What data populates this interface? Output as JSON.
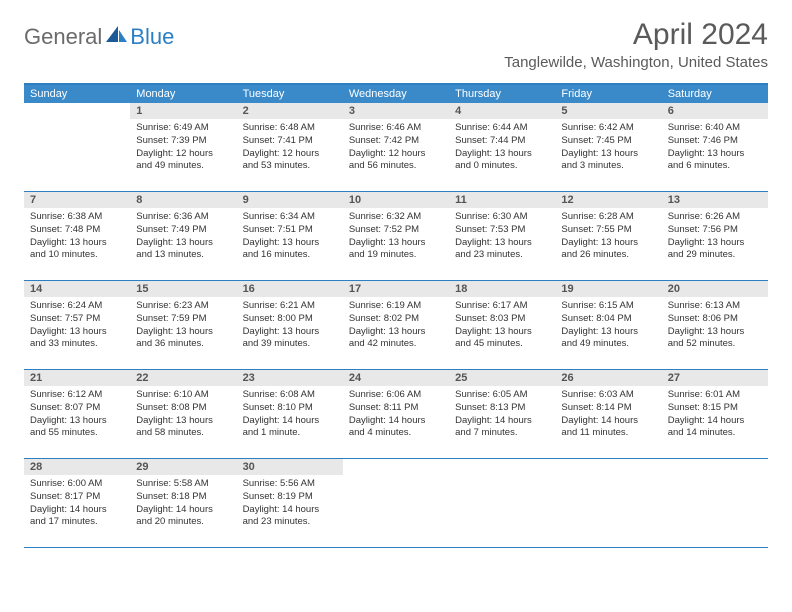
{
  "logo": {
    "text1": "General",
    "text2": "Blue"
  },
  "title": "April 2024",
  "location": "Tanglewilde, Washington, United States",
  "colors": {
    "header_bar": "#3a8ac9",
    "accent": "#2d7fc4",
    "daynum_bg": "#e8e8e8",
    "text_gray": "#5a5a5a"
  },
  "dayNames": [
    "Sunday",
    "Monday",
    "Tuesday",
    "Wednesday",
    "Thursday",
    "Friday",
    "Saturday"
  ],
  "weeks": [
    [
      {
        "empty": true
      },
      {
        "n": "1",
        "sr": "Sunrise: 6:49 AM",
        "ss": "Sunset: 7:39 PM",
        "d1": "Daylight: 12 hours",
        "d2": "and 49 minutes."
      },
      {
        "n": "2",
        "sr": "Sunrise: 6:48 AM",
        "ss": "Sunset: 7:41 PM",
        "d1": "Daylight: 12 hours",
        "d2": "and 53 minutes."
      },
      {
        "n": "3",
        "sr": "Sunrise: 6:46 AM",
        "ss": "Sunset: 7:42 PM",
        "d1": "Daylight: 12 hours",
        "d2": "and 56 minutes."
      },
      {
        "n": "4",
        "sr": "Sunrise: 6:44 AM",
        "ss": "Sunset: 7:44 PM",
        "d1": "Daylight: 13 hours",
        "d2": "and 0 minutes."
      },
      {
        "n": "5",
        "sr": "Sunrise: 6:42 AM",
        "ss": "Sunset: 7:45 PM",
        "d1": "Daylight: 13 hours",
        "d2": "and 3 minutes."
      },
      {
        "n": "6",
        "sr": "Sunrise: 6:40 AM",
        "ss": "Sunset: 7:46 PM",
        "d1": "Daylight: 13 hours",
        "d2": "and 6 minutes."
      }
    ],
    [
      {
        "n": "7",
        "sr": "Sunrise: 6:38 AM",
        "ss": "Sunset: 7:48 PM",
        "d1": "Daylight: 13 hours",
        "d2": "and 10 minutes."
      },
      {
        "n": "8",
        "sr": "Sunrise: 6:36 AM",
        "ss": "Sunset: 7:49 PM",
        "d1": "Daylight: 13 hours",
        "d2": "and 13 minutes."
      },
      {
        "n": "9",
        "sr": "Sunrise: 6:34 AM",
        "ss": "Sunset: 7:51 PM",
        "d1": "Daylight: 13 hours",
        "d2": "and 16 minutes."
      },
      {
        "n": "10",
        "sr": "Sunrise: 6:32 AM",
        "ss": "Sunset: 7:52 PM",
        "d1": "Daylight: 13 hours",
        "d2": "and 19 minutes."
      },
      {
        "n": "11",
        "sr": "Sunrise: 6:30 AM",
        "ss": "Sunset: 7:53 PM",
        "d1": "Daylight: 13 hours",
        "d2": "and 23 minutes."
      },
      {
        "n": "12",
        "sr": "Sunrise: 6:28 AM",
        "ss": "Sunset: 7:55 PM",
        "d1": "Daylight: 13 hours",
        "d2": "and 26 minutes."
      },
      {
        "n": "13",
        "sr": "Sunrise: 6:26 AM",
        "ss": "Sunset: 7:56 PM",
        "d1": "Daylight: 13 hours",
        "d2": "and 29 minutes."
      }
    ],
    [
      {
        "n": "14",
        "sr": "Sunrise: 6:24 AM",
        "ss": "Sunset: 7:57 PM",
        "d1": "Daylight: 13 hours",
        "d2": "and 33 minutes."
      },
      {
        "n": "15",
        "sr": "Sunrise: 6:23 AM",
        "ss": "Sunset: 7:59 PM",
        "d1": "Daylight: 13 hours",
        "d2": "and 36 minutes."
      },
      {
        "n": "16",
        "sr": "Sunrise: 6:21 AM",
        "ss": "Sunset: 8:00 PM",
        "d1": "Daylight: 13 hours",
        "d2": "and 39 minutes."
      },
      {
        "n": "17",
        "sr": "Sunrise: 6:19 AM",
        "ss": "Sunset: 8:02 PM",
        "d1": "Daylight: 13 hours",
        "d2": "and 42 minutes."
      },
      {
        "n": "18",
        "sr": "Sunrise: 6:17 AM",
        "ss": "Sunset: 8:03 PM",
        "d1": "Daylight: 13 hours",
        "d2": "and 45 minutes."
      },
      {
        "n": "19",
        "sr": "Sunrise: 6:15 AM",
        "ss": "Sunset: 8:04 PM",
        "d1": "Daylight: 13 hours",
        "d2": "and 49 minutes."
      },
      {
        "n": "20",
        "sr": "Sunrise: 6:13 AM",
        "ss": "Sunset: 8:06 PM",
        "d1": "Daylight: 13 hours",
        "d2": "and 52 minutes."
      }
    ],
    [
      {
        "n": "21",
        "sr": "Sunrise: 6:12 AM",
        "ss": "Sunset: 8:07 PM",
        "d1": "Daylight: 13 hours",
        "d2": "and 55 minutes."
      },
      {
        "n": "22",
        "sr": "Sunrise: 6:10 AM",
        "ss": "Sunset: 8:08 PM",
        "d1": "Daylight: 13 hours",
        "d2": "and 58 minutes."
      },
      {
        "n": "23",
        "sr": "Sunrise: 6:08 AM",
        "ss": "Sunset: 8:10 PM",
        "d1": "Daylight: 14 hours",
        "d2": "and 1 minute."
      },
      {
        "n": "24",
        "sr": "Sunrise: 6:06 AM",
        "ss": "Sunset: 8:11 PM",
        "d1": "Daylight: 14 hours",
        "d2": "and 4 minutes."
      },
      {
        "n": "25",
        "sr": "Sunrise: 6:05 AM",
        "ss": "Sunset: 8:13 PM",
        "d1": "Daylight: 14 hours",
        "d2": "and 7 minutes."
      },
      {
        "n": "26",
        "sr": "Sunrise: 6:03 AM",
        "ss": "Sunset: 8:14 PM",
        "d1": "Daylight: 14 hours",
        "d2": "and 11 minutes."
      },
      {
        "n": "27",
        "sr": "Sunrise: 6:01 AM",
        "ss": "Sunset: 8:15 PM",
        "d1": "Daylight: 14 hours",
        "d2": "and 14 minutes."
      }
    ],
    [
      {
        "n": "28",
        "sr": "Sunrise: 6:00 AM",
        "ss": "Sunset: 8:17 PM",
        "d1": "Daylight: 14 hours",
        "d2": "and 17 minutes."
      },
      {
        "n": "29",
        "sr": "Sunrise: 5:58 AM",
        "ss": "Sunset: 8:18 PM",
        "d1": "Daylight: 14 hours",
        "d2": "and 20 minutes."
      },
      {
        "n": "30",
        "sr": "Sunrise: 5:56 AM",
        "ss": "Sunset: 8:19 PM",
        "d1": "Daylight: 14 hours",
        "d2": "and 23 minutes."
      },
      {
        "empty": true
      },
      {
        "empty": true
      },
      {
        "empty": true
      },
      {
        "empty": true
      }
    ]
  ]
}
